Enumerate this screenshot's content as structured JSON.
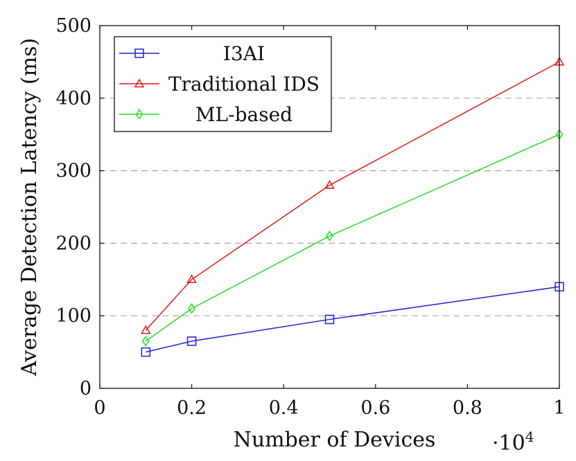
{
  "chart_data": {
    "type": "line",
    "title": "",
    "xlabel": "Number of Devices",
    "ylabel": "Average Detection Latency (ms)",
    "x_multiplier_base": "·10",
    "x_multiplier_exp": "4",
    "xlim": [
      0,
      1
    ],
    "ylim": [
      0,
      500
    ],
    "xticks": [
      0,
      0.2,
      0.4,
      0.6,
      0.8,
      1
    ],
    "xtick_labels": [
      "0",
      "0.2",
      "0.4",
      "0.6",
      "0.8",
      "1"
    ],
    "yticks": [
      0,
      100,
      200,
      300,
      400,
      500
    ],
    "ytick_labels": [
      "0",
      "100",
      "200",
      "300",
      "400",
      "500"
    ],
    "grid": "y-dashed",
    "legend_position": "top-left",
    "x": [
      0.1,
      0.2,
      0.5,
      1
    ],
    "series": [
      {
        "name": "I3AI",
        "color": "#1f1fd6",
        "marker": "square",
        "values": [
          50,
          65,
          95,
          140
        ]
      },
      {
        "name": "Traditional IDS",
        "color": "#e01818",
        "marker": "triangle",
        "values": [
          80,
          150,
          280,
          450
        ]
      },
      {
        "name": "ML-based",
        "color": "#22dd22",
        "marker": "diamond",
        "values": [
          65,
          110,
          210,
          350
        ]
      }
    ]
  }
}
